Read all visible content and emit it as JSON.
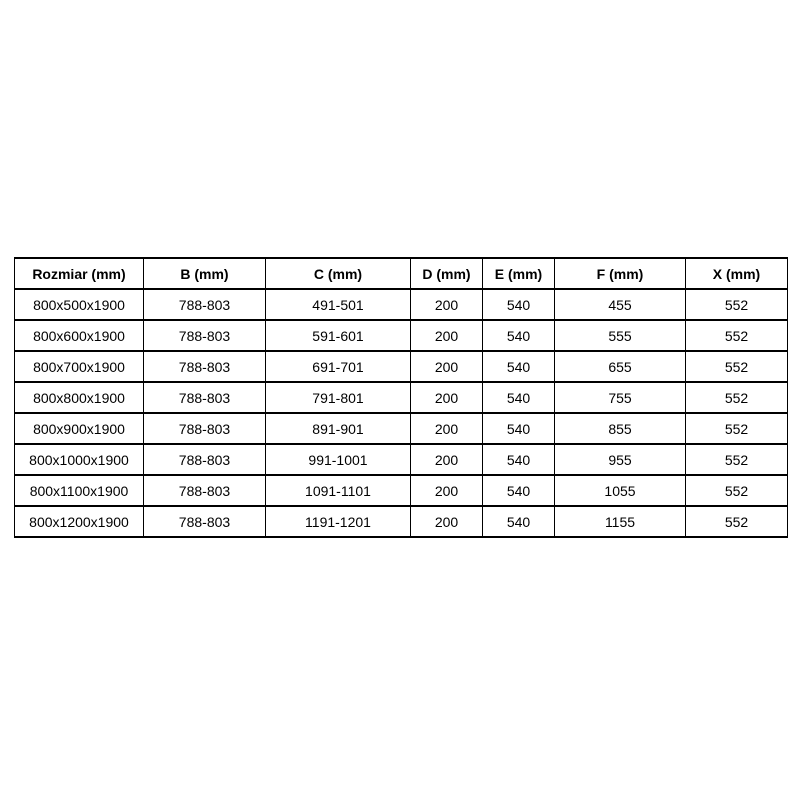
{
  "page": {
    "background": "#ffffff"
  },
  "table": {
    "border_color": "#000000",
    "text_color": "#000000",
    "background": "#ffffff",
    "columns": [
      "Rozmiar (mm)",
      "B (mm)",
      "C (mm)",
      "D (mm)",
      "E (mm)",
      "F (mm)",
      "X (mm)"
    ],
    "rows": [
      [
        "800x500x1900",
        "788-803",
        "491-501",
        "200",
        "540",
        "455",
        "552"
      ],
      [
        "800x600x1900",
        "788-803",
        "591-601",
        "200",
        "540",
        "555",
        "552"
      ],
      [
        "800x700x1900",
        "788-803",
        "691-701",
        "200",
        "540",
        "655",
        "552"
      ],
      [
        "800x800x1900",
        "788-803",
        "791-801",
        "200",
        "540",
        "755",
        "552"
      ],
      [
        "800x900x1900",
        "788-803",
        "891-901",
        "200",
        "540",
        "855",
        "552"
      ],
      [
        "800x1000x1900",
        "788-803",
        "991-1001",
        "200",
        "540",
        "955",
        "552"
      ],
      [
        "800x1100x1900",
        "788-803",
        "1091-1101",
        "200",
        "540",
        "1055",
        "552"
      ],
      [
        "800x1200x1900",
        "788-803",
        "1191-1201",
        "200",
        "540",
        "1155",
        "552"
      ]
    ]
  }
}
